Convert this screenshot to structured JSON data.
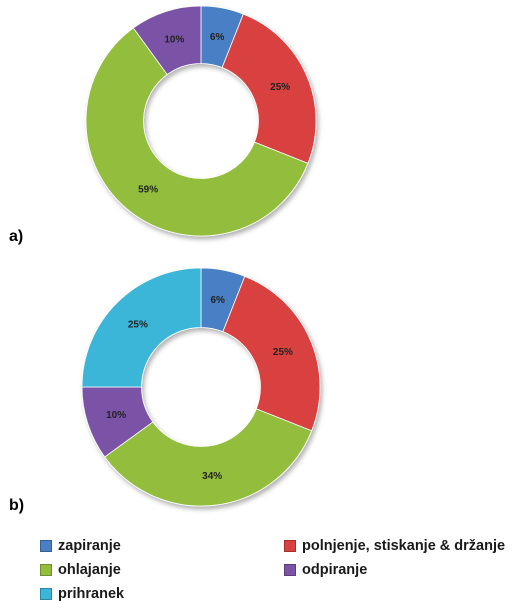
{
  "chart_data": [
    {
      "type": "pie",
      "panel": "a)",
      "categories": [
        "zapiranje",
        "polnjenje, stiskanje & držanje",
        "ohlajanje",
        "odpiranje"
      ],
      "values": [
        6,
        25,
        59,
        10
      ],
      "labels": [
        "6%",
        "25%",
        "59%",
        "10%"
      ],
      "colors": [
        "#4a7fc4",
        "#d9403f",
        "#93be3c",
        "#7a52a6"
      ],
      "hole": 0.5
    },
    {
      "type": "pie",
      "panel": "b)",
      "categories": [
        "zapiranje",
        "polnjenje, stiskanje & držanje",
        "ohlajanje",
        "odpiranje",
        "prihranek"
      ],
      "values": [
        6,
        25,
        34,
        10,
        25
      ],
      "labels": [
        "6%",
        "25%",
        "34%",
        "10%",
        "25%"
      ],
      "colors": [
        "#4a7fc4",
        "#d9403f",
        "#93be3c",
        "#7a52a6",
        "#3bb6d8"
      ],
      "hole": 0.5
    }
  ],
  "legend": {
    "placement": "bottom",
    "items": [
      {
        "label": "zapiranje",
        "color": "#4a7fc4"
      },
      {
        "label": "polnjenje, stiskanje & držanje",
        "color": "#d9403f"
      },
      {
        "label": "ohlajanje",
        "color": "#93be3c"
      },
      {
        "label": "odpiranje",
        "color": "#7a52a6"
      },
      {
        "label": "prihranek",
        "color": "#3bb6d8"
      }
    ]
  }
}
